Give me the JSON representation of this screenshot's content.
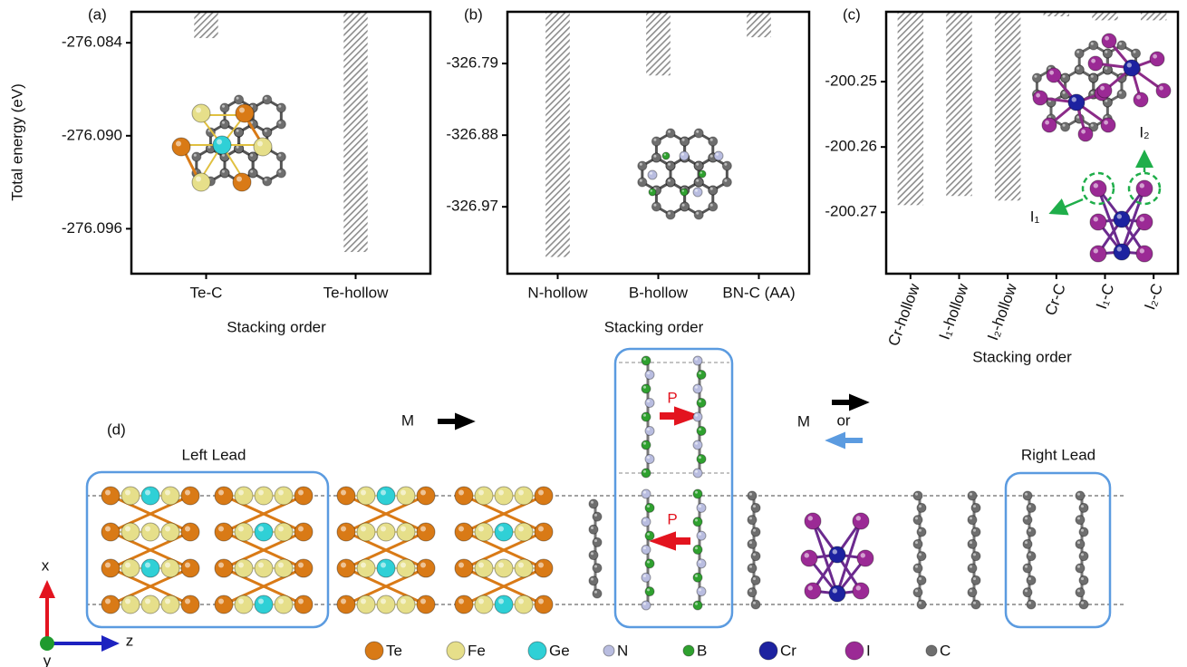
{
  "chart_data": [
    {
      "type": "bar",
      "label": "(a)",
      "y_label": "Total energy (eV)",
      "x_label": "Stacking order",
      "categories": [
        "Te-C",
        "Te-hollow"
      ],
      "values": [
        -276.0837,
        -276.0975
      ],
      "color": "#8c8c8c",
      "ylim": [
        -276.0989,
        -276.082
      ],
      "yticks": [
        -276.084,
        {
          "value": -276.09,
          "label": "-276.090"
        },
        -276.096
      ]
    },
    {
      "type": "bar",
      "label": "(b)",
      "x_label": "Stacking order",
      "categories": [
        "N-hollow",
        "B-hollow",
        "BN-C (AA)"
      ],
      "values": [
        -327.033,
        -326.805,
        -326.757
      ],
      "color": "#8c8c8c",
      "ylim": [
        -327.054,
        -326.725
      ],
      "yticks": [
        -326.79,
        -326.88,
        -326.97
      ]
    },
    {
      "type": "bar",
      "label": "(c)",
      "x_label": "Stacking order",
      "categories": [
        "Cr-hollow",
        "I₁-hollow",
        "I₂-hollow",
        "Cr-C",
        "I₁-C",
        "I₂-C"
      ],
      "values": [
        -200.2689,
        -200.2675,
        -200.2682,
        -200.24,
        -200.2406,
        -200.2406
      ],
      "color": "#8c8c8c",
      "ylim": [
        -200.2794,
        -200.2393
      ],
      "yticks": [
        -200.25,
        -200.26,
        -200.27
      ],
      "annotations": [
        "I₁",
        "I₂"
      ]
    }
  ],
  "diagram": {
    "label": "(d)",
    "left_lead": "Left Lead",
    "right_lead": "Right Lead",
    "magnetization": [
      "M",
      "M"
    ],
    "or": "or",
    "polarization": [
      "P",
      "P"
    ],
    "axes": [
      "x",
      "z",
      "y"
    ],
    "legend": [
      {
        "name": "Te",
        "color": "#d97a16"
      },
      {
        "name": "Fe",
        "color": "#e6df8a"
      },
      {
        "name": "Ge",
        "color": "#2fd0d6"
      },
      {
        "name": "N",
        "color": "#b9bde0"
      },
      {
        "name": "B",
        "color": "#2fa12f"
      },
      {
        "name": "Cr",
        "color": "#1d22a0"
      },
      {
        "name": "I",
        "color": "#9b2a95"
      },
      {
        "name": "C",
        "color": "#6e6e6e"
      }
    ]
  }
}
